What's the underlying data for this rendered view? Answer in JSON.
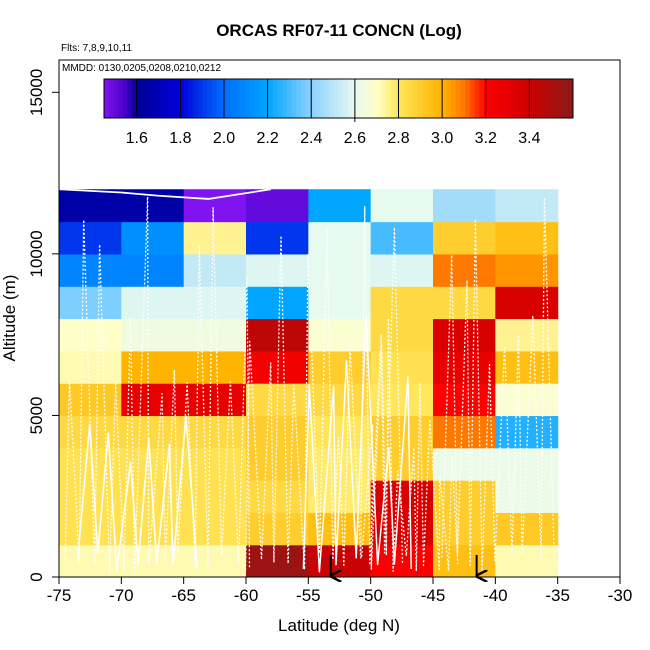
{
  "chart_data": {
    "type": "heatmap",
    "title": "ORCAS RF07-11 CONCN (Log)",
    "subtitle_flights": "Flts: 7,8,9,10,11",
    "subtitle_dates": "MMDD: 0130,0205,0208,0210,0212",
    "xlabel": "Latitude (deg N)",
    "ylabel": "Altitude (m)",
    "xlim": [
      -75,
      -30
    ],
    "ylim": [
      0,
      16000
    ],
    "x_ticks": [
      -75,
      -70,
      -65,
      -60,
      -55,
      -50,
      -45,
      -40,
      -35,
      -30
    ],
    "y_ticks": [
      0,
      5000,
      10000,
      15000
    ],
    "colorbar": {
      "range": [
        1.45,
        3.6
      ],
      "ticks": [
        1.6,
        1.8,
        2.0,
        2.2,
        2.4,
        2.6,
        2.8,
        3.0,
        3.2,
        3.4
      ],
      "tick_labels": [
        "1.6",
        "1.8",
        "2.0",
        "2.2",
        "2.4",
        "2.6",
        "2.8",
        "3.0",
        "3.2",
        "3.4"
      ]
    },
    "cell_width_deg": 5,
    "cell_height_m": 1000,
    "columns_lat_start": [
      -75,
      -70,
      -65,
      -60,
      -55,
      -50,
      -45,
      -40
    ],
    "rows_alt_start": [
      0,
      1000,
      2000,
      3000,
      4000,
      5000,
      6000,
      7000,
      8000,
      9000,
      10000,
      11000
    ],
    "values": [
      [
        2.72,
        2.72,
        2.72,
        3.55,
        3.42,
        3.22,
        2.95,
        2.72
      ],
      [
        2.82,
        2.82,
        2.82,
        2.9,
        2.95,
        3.35,
        2.9,
        2.92
      ],
      [
        2.82,
        2.82,
        2.82,
        2.85,
        2.78,
        3.35,
        2.9,
        2.62
      ],
      [
        2.82,
        2.82,
        2.82,
        2.9,
        2.78,
        2.9,
        2.62,
        2.62
      ],
      [
        2.85,
        2.85,
        2.85,
        2.9,
        2.8,
        2.9,
        3.1,
        2.25
      ],
      [
        2.92,
        3.3,
        3.3,
        2.85,
        2.85,
        2.8,
        3.2,
        2.68
      ],
      [
        2.72,
        3.0,
        3.0,
        3.25,
        2.9,
        2.82,
        3.3,
        2.95
      ],
      [
        2.7,
        2.64,
        2.64,
        3.45,
        2.68,
        2.85,
        3.35,
        2.75
      ],
      [
        2.38,
        2.58,
        2.58,
        2.2,
        2.6,
        2.85,
        2.85,
        3.35
      ],
      [
        2.08,
        2.08,
        2.52,
        2.58,
        2.6,
        2.58,
        3.1,
        3.05
      ],
      [
        1.9,
        2.12,
        2.75,
        1.9,
        2.6,
        2.3,
        2.9,
        2.95
      ],
      [
        1.65,
        1.65,
        1.45,
        1.5,
        2.2,
        2.6,
        2.45,
        2.52
      ]
    ],
    "flight_tracks": "white dotted and solid flight-path lines overlaid on cells",
    "arrows_at_lat": [
      -53.2,
      -41.5
    ]
  }
}
